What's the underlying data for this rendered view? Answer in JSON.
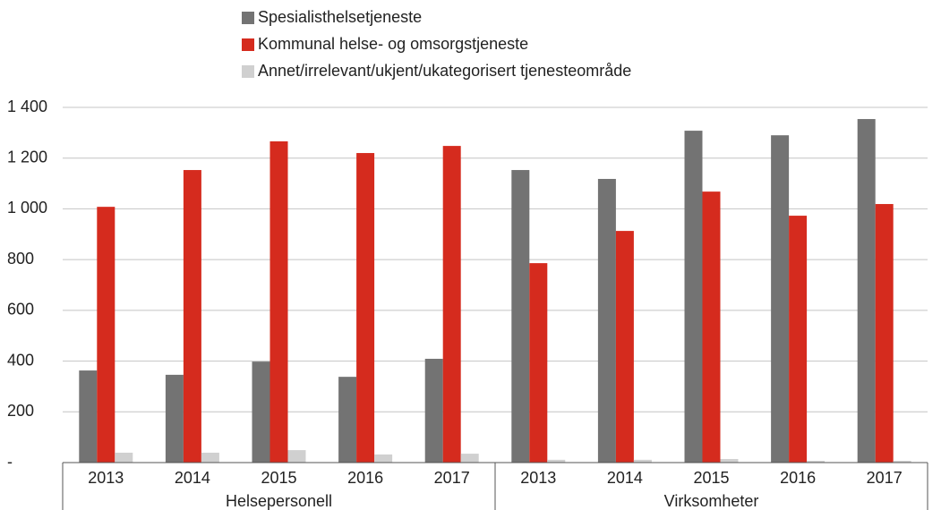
{
  "chart_data": {
    "type": "bar",
    "categories": [
      "2013",
      "2014",
      "2015",
      "2016",
      "2017",
      "2013",
      "2014",
      "2015",
      "2016",
      "2017"
    ],
    "groups": [
      "Helsepersonell",
      "Virksomheter"
    ],
    "series": [
      {
        "name": "Spesialisthelsetjeneste",
        "color": "#737373",
        "values": [
          363,
          346,
          398,
          338,
          409,
          1153,
          1118,
          1308,
          1290,
          1354
        ]
      },
      {
        "name": "Kommunal helse- og omsorgstjeneste",
        "color": "#d52b1e",
        "values": [
          1008,
          1153,
          1266,
          1220,
          1248,
          786,
          913,
          1068,
          973,
          1019
        ]
      },
      {
        "name": "Annet/irrelevant/ukjent/ukategorisert tjenesteområde",
        "color": "#d0d0d0",
        "values": [
          39,
          39,
          49,
          32,
          35,
          11,
          11,
          14,
          7,
          7
        ]
      }
    ],
    "ylim": [
      0,
      1400
    ],
    "yticks": [
      {
        "value": 0,
        "label": "-"
      },
      200,
      400,
      600,
      800,
      {
        "value": 1000,
        "label": "1 000"
      },
      {
        "value": 1200,
        "label": "1 200"
      },
      {
        "value": 1400,
        "label": "1 400"
      }
    ],
    "grid": true
  }
}
